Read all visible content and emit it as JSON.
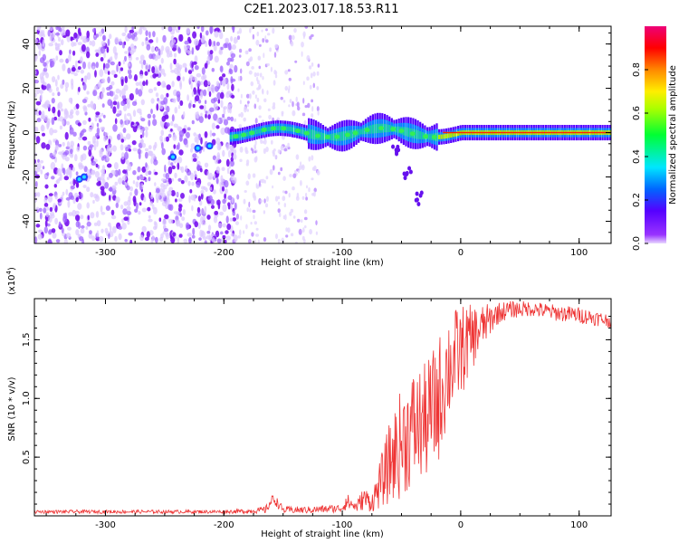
{
  "title": "C2E1.2023.017.18.53.R11",
  "colors": {
    "snr_line": "#ee3333",
    "spectrum_scatter": "#7711ee",
    "spectrum_band": "#22bbff"
  },
  "chart_data": [
    {
      "type": "heatmap",
      "xlabel": "Height of straight line (km)",
      "ylabel": "Frequency (Hz)",
      "xlim": [
        -360,
        127
      ],
      "ylim": [
        -50,
        48
      ],
      "xticks": [
        -300,
        -200,
        -100,
        0,
        100
      ],
      "yticks": [
        -40,
        -20,
        0,
        20,
        40
      ],
      "colorbar": {
        "label": "Normalized spectral amplitude",
        "range": [
          0,
          1
        ],
        "ticks": [
          "0.0",
          "0.2",
          "0.4",
          "0.6",
          "0.8"
        ],
        "tick_values": [
          0.0,
          0.2,
          0.4,
          0.6,
          0.8
        ],
        "colormap": "rainbow (violet → blue → cyan → green → yellow → red → magenta)"
      },
      "features": {
        "noisy_region_x": [
          -360,
          -190
        ],
        "sparse_noise_region_x": [
          -190,
          -120
        ],
        "carrier_line_frequency_hz": 0,
        "carrier_line_x": [
          -195,
          127
        ],
        "diagonal_feature": [
          [
            -55,
            -8
          ],
          [
            -45,
            -18
          ],
          [
            -35,
            -30
          ]
        ]
      }
    },
    {
      "type": "line",
      "xlabel": "Height of straight line (km)",
      "ylabel": "SNR (10 * v/v)",
      "y_multiplier": "(x10",
      "y_multiplier_exp": "4",
      "y_multiplier_close": ")",
      "xlim": [
        -360,
        127
      ],
      "ylim": [
        0,
        1.85
      ],
      "xticks": [
        -300,
        -200,
        -100,
        0,
        100
      ],
      "yticks": [
        0.5,
        1.0,
        1.5
      ],
      "ytick_labels": [
        "0.5",
        "1.0",
        "1.5"
      ],
      "series": [
        {
          "x": [
            -360,
            -300,
            -250,
            -200,
            -180,
            -165,
            -158,
            -150,
            -130,
            -100,
            -97,
            -88,
            -82,
            -75,
            -60,
            -50,
            -40,
            -30,
            -20,
            -10,
            0,
            10,
            20,
            30,
            40,
            60,
            80,
            100,
            127
          ],
          "y": [
            0.03,
            0.03,
            0.03,
            0.03,
            0.04,
            0.05,
            0.2,
            0.05,
            0.05,
            0.06,
            0.2,
            0.08,
            0.25,
            0.1,
            0.4,
            0.55,
            0.65,
            0.75,
            0.8,
            1.1,
            1.3,
            1.45,
            1.6,
            1.7,
            1.73,
            1.75,
            1.72,
            1.7,
            1.68
          ],
          "envelope_min": [
            0.02,
            0.02,
            0.02,
            0.02,
            0.02,
            0.02,
            0.1,
            0.02,
            0.02,
            0.03,
            0.05,
            0.03,
            0.05,
            0.03,
            0.1,
            0.15,
            0.25,
            0.3,
            0.4,
            0.8,
            1.0,
            1.25,
            1.45,
            1.62,
            1.68,
            1.7,
            1.66,
            1.64,
            1.6
          ],
          "envelope_max": [
            0.05,
            0.05,
            0.05,
            0.05,
            0.06,
            0.08,
            0.2,
            0.08,
            0.08,
            0.1,
            0.2,
            0.12,
            0.25,
            0.2,
            0.8,
            1.1,
            1.25,
            1.3,
            1.5,
            1.75,
            1.8,
            1.8,
            1.8,
            1.82,
            1.83,
            1.83,
            1.8,
            1.78,
            1.72
          ]
        }
      ]
    }
  ]
}
